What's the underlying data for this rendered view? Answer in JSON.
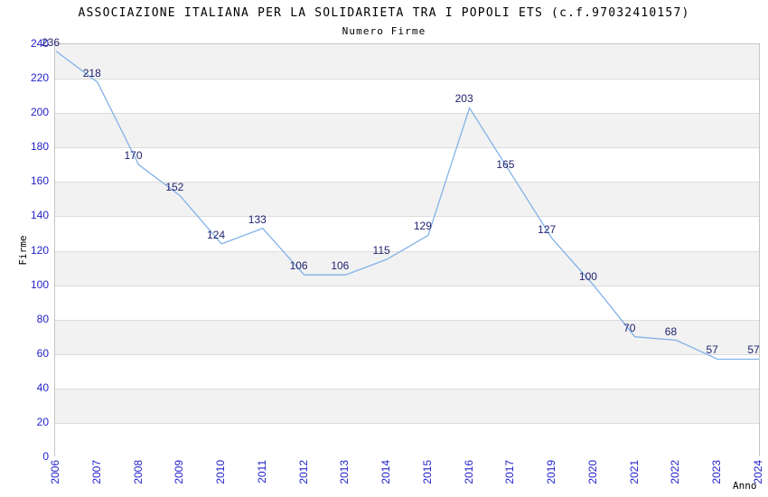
{
  "title": "ASSOCIAZIONE ITALIANA PER LA SOLIDARIETA TRA I POPOLI ETS (c.f.97032410157)",
  "subtitle": "Numero Firme",
  "chart_data": {
    "type": "line",
    "title": "ASSOCIAZIONE ITALIANA PER LA SOLIDARIETA TRA I POPOLI ETS (c.f.97032410157)",
    "subtitle": "Numero Firme",
    "categories": [
      "2006",
      "2007",
      "2008",
      "2009",
      "2010",
      "2011",
      "2012",
      "2013",
      "2014",
      "2015",
      "2016",
      "2017",
      "2019",
      "2020",
      "2021",
      "2022",
      "2023",
      "2024"
    ],
    "values": [
      236,
      218,
      170,
      152,
      124,
      133,
      106,
      106,
      115,
      129,
      203,
      165,
      127,
      100,
      70,
      68,
      57,
      57
    ],
    "xlabel": "Anno",
    "ylabel": "Firme",
    "ylim": [
      0,
      240
    ],
    "ytick_step": 20,
    "grid": true,
    "legend": "none",
    "colors": {
      "line": "#82b2e8",
      "tick_label": "#2222cc",
      "data_label": "#222270",
      "band_gray": "#f2f2f2",
      "band_white": "#ffffff",
      "grid": "#dcdcdc",
      "border": "#c6c6c6",
      "text": "#000000"
    }
  }
}
